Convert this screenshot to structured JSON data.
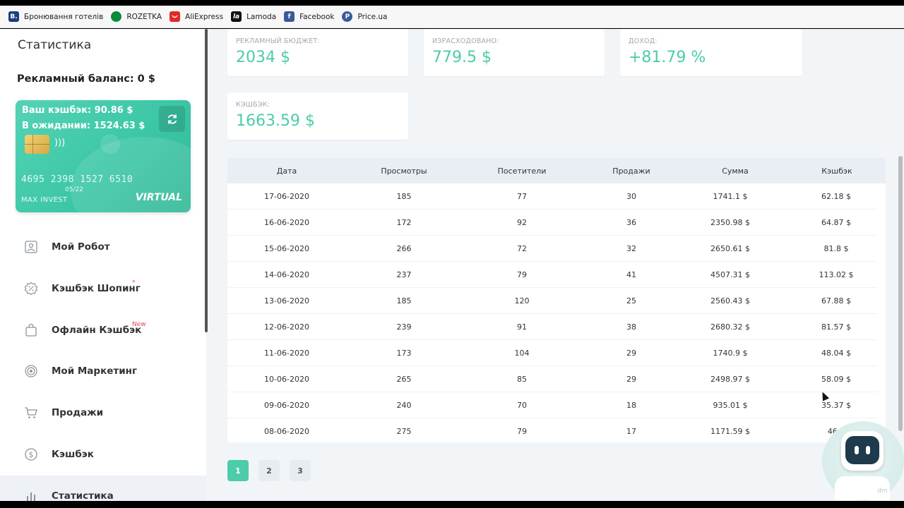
{
  "bookmarks": [
    {
      "label": "Бронювання готелів",
      "icon_text": "B.",
      "color": "#1a3f83"
    },
    {
      "label": "ROZETKA",
      "icon_text": "",
      "color": "#0a8a3a"
    },
    {
      "label": "AliExpress",
      "icon_text": "",
      "color": "#e02a2a"
    },
    {
      "label": "Lamoda",
      "icon_text": "la",
      "color": "#111111"
    },
    {
      "label": "Facebook",
      "icon_text": "f",
      "color": "#3b5998"
    },
    {
      "label": "Price.ua",
      "icon_text": "P",
      "color": "#3d5a99"
    }
  ],
  "sidebar": {
    "title": "Статистика",
    "ad_balance": "Рекламный баланс: 0 $",
    "card": {
      "cashback": "Ваш кэшбэк: 90.86 $",
      "pending": "В ожидании: 1524.63 $",
      "number": "4695 2398 1527 6510",
      "expiry": "05/22",
      "holder": "MAX INVEST",
      "type": "VIRTUAL"
    },
    "nav": [
      {
        "label": "Мой Робот",
        "icon": "robot-icon",
        "badge": ""
      },
      {
        "label": "Кэшбэк Шопинг",
        "icon": "percent-icon",
        "badge": "*"
      },
      {
        "label": "Офлайн Кэшбэк",
        "icon": "bag-icon",
        "badge": "New"
      },
      {
        "label": "Мой Маркетинг",
        "icon": "target-icon",
        "badge": ""
      },
      {
        "label": "Продажи",
        "icon": "cart-icon",
        "badge": ""
      },
      {
        "label": "Кэшбэк",
        "icon": "dollar-icon",
        "badge": ""
      },
      {
        "label": "Статистика",
        "icon": "bar-chart-icon",
        "badge": ""
      }
    ]
  },
  "stats": [
    {
      "label": "РЕКЛАМНЫЙ БЮДЖЕТ:",
      "value": "2034 $"
    },
    {
      "label": "ИЗРАСХОДОВАНО:",
      "value": "779.5 $"
    },
    {
      "label": "ДОХОД:",
      "value": "+81.79 %"
    },
    {
      "label": "КЭШБЭК:",
      "value": "1663.59 $"
    }
  ],
  "table": {
    "headers": [
      "Дата",
      "Просмотры",
      "Посетители",
      "Продажи",
      "Сумма",
      "Кэшбэк"
    ],
    "rows": [
      [
        "17-06-2020",
        "185",
        "77",
        "30",
        "1741.1 $",
        "62.18 $"
      ],
      [
        "16-06-2020",
        "172",
        "92",
        "36",
        "2350.98 $",
        "64.87 $"
      ],
      [
        "15-06-2020",
        "266",
        "72",
        "32",
        "2650.61 $",
        "81.8 $"
      ],
      [
        "14-06-2020",
        "237",
        "79",
        "41",
        "4507.31 $",
        "113.02 $"
      ],
      [
        "13-06-2020",
        "185",
        "120",
        "25",
        "2560.43 $",
        "67.88 $"
      ],
      [
        "12-06-2020",
        "239",
        "91",
        "38",
        "2680.32 $",
        "81.57 $"
      ],
      [
        "11-06-2020",
        "173",
        "104",
        "29",
        "1740.9 $",
        "48.04 $"
      ],
      [
        "10-06-2020",
        "265",
        "85",
        "29",
        "2498.97 $",
        "58.09 $"
      ],
      [
        "09-06-2020",
        "240",
        "70",
        "18",
        "935.01 $",
        "35.37 $"
      ],
      [
        "08-06-2020",
        "275",
        "79",
        "17",
        "1171.59 $",
        "46.8"
      ]
    ]
  },
  "pagination": [
    "1",
    "2",
    "3"
  ],
  "assistant": {
    "label": "dm"
  }
}
